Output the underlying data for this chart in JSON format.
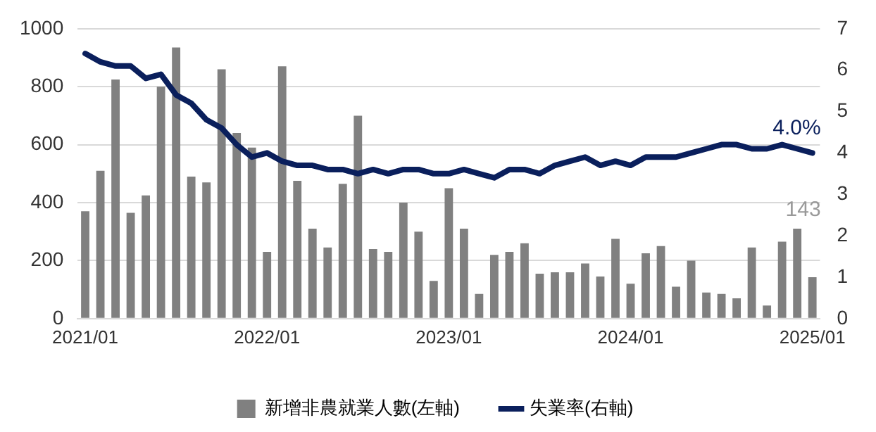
{
  "chart_data": {
    "type": "bar",
    "categories": [
      "2021/01",
      null,
      null,
      null,
      null,
      null,
      null,
      null,
      null,
      null,
      null,
      null,
      "2022/01",
      null,
      null,
      null,
      null,
      null,
      null,
      null,
      null,
      null,
      null,
      null,
      "2023/01",
      null,
      null,
      null,
      null,
      null,
      null,
      null,
      null,
      null,
      null,
      null,
      "2024/01",
      null,
      null,
      null,
      null,
      null,
      null,
      null,
      null,
      null,
      null,
      null,
      "2025/01"
    ],
    "series": [
      {
        "name": "新增非農就業人數(左軸)",
        "color": "#808080",
        "values": [
          370,
          510,
          825,
          365,
          425,
          800,
          935,
          490,
          470,
          860,
          640,
          590,
          230,
          870,
          475,
          310,
          245,
          465,
          700,
          240,
          230,
          400,
          300,
          130,
          450,
          310,
          85,
          220,
          230,
          260,
          155,
          160,
          160,
          190,
          145,
          275,
          120,
          225,
          250,
          110,
          200,
          90,
          85,
          70,
          245,
          45,
          265,
          310,
          143
        ],
        "value_labels": [
          null,
          null,
          null,
          null,
          null,
          null,
          null,
          null,
          null,
          null,
          null,
          null,
          null,
          null,
          null,
          null,
          null,
          null,
          null,
          null,
          null,
          null,
          null,
          null,
          null,
          null,
          null,
          null,
          null,
          null,
          null,
          null,
          null,
          null,
          null,
          null,
          null,
          null,
          null,
          null,
          null,
          null,
          null,
          null,
          null,
          null,
          null,
          null,
          "143"
        ]
      },
      {
        "name": "失業率(右軸)",
        "type": "line",
        "axis": "y2",
        "color": "#0a1f5c",
        "values": [
          6.4,
          6.2,
          6.1,
          6.1,
          5.8,
          5.9,
          5.4,
          5.2,
          4.8,
          4.6,
          4.2,
          3.9,
          4.0,
          3.8,
          3.7,
          3.7,
          3.6,
          3.6,
          3.5,
          3.6,
          3.5,
          3.6,
          3.6,
          3.5,
          3.5,
          3.6,
          3.5,
          3.4,
          3.6,
          3.6,
          3.5,
          3.7,
          3.8,
          3.9,
          3.7,
          3.8,
          3.7,
          3.9,
          3.9,
          3.9,
          4.0,
          4.1,
          4.2,
          4.2,
          4.1,
          4.1,
          4.2,
          4.1,
          4.0
        ],
        "value_labels": [
          null,
          null,
          null,
          null,
          null,
          null,
          null,
          null,
          null,
          null,
          null,
          null,
          null,
          null,
          null,
          null,
          null,
          null,
          null,
          null,
          null,
          null,
          null,
          null,
          null,
          null,
          null,
          null,
          null,
          null,
          null,
          null,
          null,
          null,
          null,
          null,
          null,
          null,
          null,
          null,
          null,
          null,
          null,
          null,
          null,
          null,
          null,
          null,
          "4.0%"
        ]
      }
    ],
    "ylim": [
      0,
      1000
    ],
    "yticks": [
      0,
      200,
      400,
      600,
      800,
      1000
    ],
    "y2lim": [
      0,
      7
    ],
    "y2ticks": [
      0,
      1,
      2,
      3,
      4,
      5,
      6,
      7
    ],
    "grid": "y",
    "legend": "bottom",
    "marker": "none"
  }
}
